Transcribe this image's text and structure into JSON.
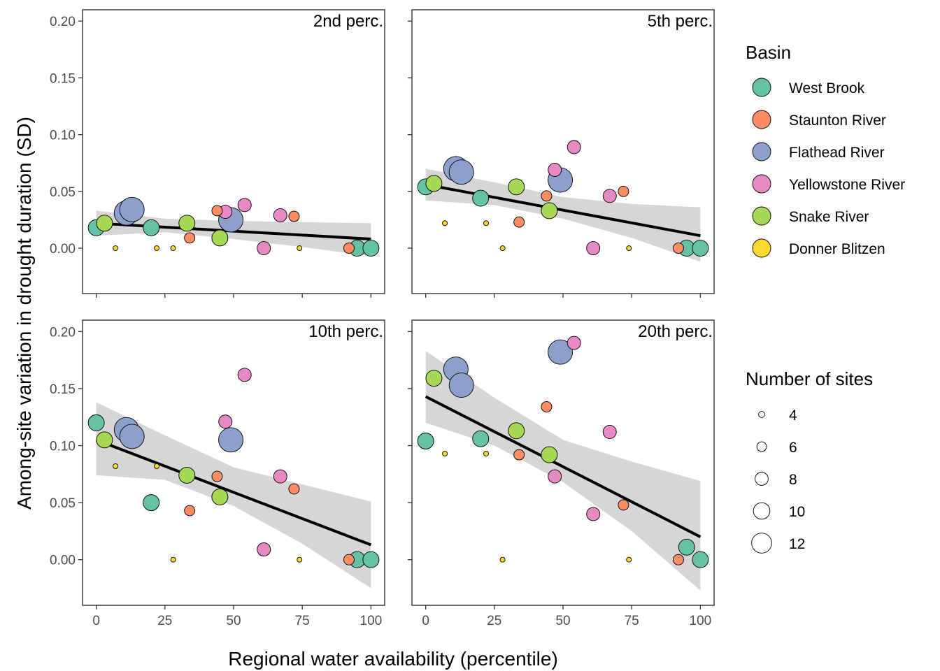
{
  "chart_data": {
    "type": "scatter",
    "xlabel": "Regional water availability (percentile)",
    "ylabel": "Among-site variation in drought duration (SD)",
    "xlim": [
      -5,
      105
    ],
    "ylim": [
      -0.04,
      0.21
    ],
    "x_ticks": [
      "0",
      "25",
      "50",
      "75",
      "100"
    ],
    "y_ticks": [
      "0.00",
      "0.05",
      "0.10",
      "0.15",
      "0.20"
    ],
    "grid": false,
    "basin_legend": {
      "title": "Basin",
      "items": [
        {
          "name": "West Brook",
          "color": "#66C2A5"
        },
        {
          "name": "Staunton River",
          "color": "#FC8D62"
        },
        {
          "name": "Flathead River",
          "color": "#8DA0CB"
        },
        {
          "name": "Yellowstone River",
          "color": "#E78AC3"
        },
        {
          "name": "Snake River",
          "color": "#A6D854"
        },
        {
          "name": "Donner Blitzen",
          "color": "#FFD92F"
        }
      ]
    },
    "size_legend": {
      "title": "Number of sites",
      "items": [
        {
          "label": "4",
          "n": 4
        },
        {
          "label": "6",
          "n": 6
        },
        {
          "label": "8",
          "n": 8
        },
        {
          "label": "10",
          "n": 10
        },
        {
          "label": "12",
          "n": 12
        }
      ]
    },
    "panels": [
      {
        "label": "2nd perc.",
        "fit": {
          "x0": 0,
          "y0": 0.022,
          "x1": 100,
          "y1": 0.008
        },
        "band": [
          [
            0,
            0.011,
            0.033
          ],
          [
            25,
            0.014,
            0.026
          ],
          [
            50,
            0.008,
            0.024
          ],
          [
            75,
            0.001,
            0.023
          ],
          [
            100,
            -0.007,
            0.022
          ]
        ],
        "points": [
          {
            "x": 0,
            "y": 0.018,
            "basin": 0,
            "n": 7
          },
          {
            "x": 3,
            "y": 0.022,
            "basin": 4,
            "n": 7
          },
          {
            "x": 7,
            "y": 0.0,
            "basin": 5,
            "n": 3
          },
          {
            "x": 11,
            "y": 0.031,
            "basin": 2,
            "n": 10
          },
          {
            "x": 13,
            "y": 0.034,
            "basin": 2,
            "n": 10
          },
          {
            "x": 20,
            "y": 0.018,
            "basin": 0,
            "n": 7
          },
          {
            "x": 22,
            "y": 0.0,
            "basin": 5,
            "n": 3
          },
          {
            "x": 28,
            "y": 0.0,
            "basin": 5,
            "n": 3
          },
          {
            "x": 33,
            "y": 0.022,
            "basin": 4,
            "n": 7
          },
          {
            "x": 34,
            "y": 0.009,
            "basin": 1,
            "n": 5
          },
          {
            "x": 44,
            "y": 0.033,
            "basin": 1,
            "n": 5
          },
          {
            "x": 45,
            "y": 0.009,
            "basin": 4,
            "n": 7
          },
          {
            "x": 47,
            "y": 0.032,
            "basin": 3,
            "n": 6
          },
          {
            "x": 49,
            "y": 0.025,
            "basin": 2,
            "n": 10
          },
          {
            "x": 54,
            "y": 0.038,
            "basin": 3,
            "n": 6
          },
          {
            "x": 61,
            "y": 0.0,
            "basin": 3,
            "n": 6
          },
          {
            "x": 67,
            "y": 0.029,
            "basin": 3,
            "n": 6
          },
          {
            "x": 72,
            "y": 0.028,
            "basin": 1,
            "n": 5
          },
          {
            "x": 74,
            "y": 0.0,
            "basin": 5,
            "n": 3
          },
          {
            "x": 92,
            "y": 0.0,
            "basin": 1,
            "n": 5
          },
          {
            "x": 95,
            "y": 0.0,
            "basin": 0,
            "n": 7
          },
          {
            "x": 100,
            "y": 0.0,
            "basin": 0,
            "n": 7
          }
        ]
      },
      {
        "label": "5th perc.",
        "fit": {
          "x0": 0,
          "y0": 0.056,
          "x1": 100,
          "y1": 0.011
        },
        "band": [
          [
            0,
            0.042,
            0.07
          ],
          [
            25,
            0.038,
            0.058
          ],
          [
            50,
            0.026,
            0.045
          ],
          [
            75,
            0.009,
            0.039
          ],
          [
            100,
            -0.012,
            0.036
          ]
        ],
        "points": [
          {
            "x": 0,
            "y": 0.054,
            "basin": 0,
            "n": 7
          },
          {
            "x": 3,
            "y": 0.057,
            "basin": 4,
            "n": 7
          },
          {
            "x": 7,
            "y": 0.022,
            "basin": 5,
            "n": 3
          },
          {
            "x": 11,
            "y": 0.07,
            "basin": 2,
            "n": 10
          },
          {
            "x": 13,
            "y": 0.067,
            "basin": 2,
            "n": 10
          },
          {
            "x": 20,
            "y": 0.044,
            "basin": 0,
            "n": 7
          },
          {
            "x": 22,
            "y": 0.022,
            "basin": 5,
            "n": 3
          },
          {
            "x": 28,
            "y": 0.0,
            "basin": 5,
            "n": 3
          },
          {
            "x": 33,
            "y": 0.054,
            "basin": 4,
            "n": 7
          },
          {
            "x": 34,
            "y": 0.023,
            "basin": 1,
            "n": 5
          },
          {
            "x": 44,
            "y": 0.046,
            "basin": 1,
            "n": 5
          },
          {
            "x": 45,
            "y": 0.033,
            "basin": 4,
            "n": 7
          },
          {
            "x": 47,
            "y": 0.069,
            "basin": 3,
            "n": 6
          },
          {
            "x": 49,
            "y": 0.06,
            "basin": 2,
            "n": 10
          },
          {
            "x": 54,
            "y": 0.089,
            "basin": 3,
            "n": 6
          },
          {
            "x": 61,
            "y": 0.0,
            "basin": 3,
            "n": 6
          },
          {
            "x": 67,
            "y": 0.046,
            "basin": 3,
            "n": 6
          },
          {
            "x": 72,
            "y": 0.05,
            "basin": 1,
            "n": 5
          },
          {
            "x": 74,
            "y": 0.0,
            "basin": 5,
            "n": 3
          },
          {
            "x": 92,
            "y": 0.0,
            "basin": 1,
            "n": 5
          },
          {
            "x": 95,
            "y": 0.0,
            "basin": 0,
            "n": 7
          },
          {
            "x": 100,
            "y": 0.0,
            "basin": 0,
            "n": 7
          }
        ]
      },
      {
        "label": "10th perc.",
        "fit": {
          "x0": 0,
          "y0": 0.105,
          "x1": 100,
          "y1": 0.013
        },
        "band": [
          [
            0,
            0.074,
            0.138
          ],
          [
            25,
            0.07,
            0.109
          ],
          [
            50,
            0.047,
            0.081
          ],
          [
            75,
            0.014,
            0.066
          ],
          [
            100,
            -0.025,
            0.051
          ]
        ],
        "points": [
          {
            "x": 0,
            "y": 0.12,
            "basin": 0,
            "n": 7
          },
          {
            "x": 3,
            "y": 0.105,
            "basin": 4,
            "n": 7
          },
          {
            "x": 7,
            "y": 0.082,
            "basin": 5,
            "n": 3
          },
          {
            "x": 11,
            "y": 0.114,
            "basin": 2,
            "n": 10
          },
          {
            "x": 13,
            "y": 0.108,
            "basin": 2,
            "n": 10
          },
          {
            "x": 20,
            "y": 0.05,
            "basin": 0,
            "n": 7
          },
          {
            "x": 22,
            "y": 0.082,
            "basin": 5,
            "n": 3
          },
          {
            "x": 28,
            "y": 0.0,
            "basin": 5,
            "n": 3
          },
          {
            "x": 33,
            "y": 0.074,
            "basin": 4,
            "n": 7
          },
          {
            "x": 34,
            "y": 0.043,
            "basin": 1,
            "n": 5
          },
          {
            "x": 44,
            "y": 0.073,
            "basin": 1,
            "n": 5
          },
          {
            "x": 45,
            "y": 0.055,
            "basin": 4,
            "n": 7
          },
          {
            "x": 47,
            "y": 0.121,
            "basin": 3,
            "n": 6
          },
          {
            "x": 49,
            "y": 0.105,
            "basin": 2,
            "n": 10
          },
          {
            "x": 54,
            "y": 0.162,
            "basin": 3,
            "n": 6
          },
          {
            "x": 61,
            "y": 0.009,
            "basin": 3,
            "n": 6
          },
          {
            "x": 67,
            "y": 0.073,
            "basin": 3,
            "n": 6
          },
          {
            "x": 72,
            "y": 0.062,
            "basin": 1,
            "n": 5
          },
          {
            "x": 74,
            "y": 0.0,
            "basin": 5,
            "n": 3
          },
          {
            "x": 92,
            "y": 0.0,
            "basin": 1,
            "n": 5
          },
          {
            "x": 95,
            "y": 0.0,
            "basin": 0,
            "n": 7
          },
          {
            "x": 100,
            "y": 0.0,
            "basin": 0,
            "n": 7
          }
        ]
      },
      {
        "label": "20th perc.",
        "fit": {
          "x0": 0,
          "y0": 0.143,
          "x1": 100,
          "y1": 0.02
        },
        "band": [
          [
            0,
            0.12,
            0.183
          ],
          [
            25,
            0.1,
            0.142
          ],
          [
            50,
            0.068,
            0.105
          ],
          [
            75,
            0.025,
            0.086
          ],
          [
            100,
            -0.027,
            0.069
          ]
        ],
        "points": [
          {
            "x": 0,
            "y": 0.104,
            "basin": 0,
            "n": 7
          },
          {
            "x": 3,
            "y": 0.159,
            "basin": 4,
            "n": 7
          },
          {
            "x": 7,
            "y": 0.093,
            "basin": 5,
            "n": 3
          },
          {
            "x": 11,
            "y": 0.167,
            "basin": 2,
            "n": 10
          },
          {
            "x": 13,
            "y": 0.153,
            "basin": 2,
            "n": 10
          },
          {
            "x": 20,
            "y": 0.106,
            "basin": 0,
            "n": 7
          },
          {
            "x": 22,
            "y": 0.093,
            "basin": 5,
            "n": 3
          },
          {
            "x": 28,
            "y": 0.0,
            "basin": 5,
            "n": 3
          },
          {
            "x": 33,
            "y": 0.113,
            "basin": 4,
            "n": 7
          },
          {
            "x": 34,
            "y": 0.092,
            "basin": 1,
            "n": 5
          },
          {
            "x": 44,
            "y": 0.134,
            "basin": 1,
            "n": 5
          },
          {
            "x": 45,
            "y": 0.092,
            "basin": 4,
            "n": 7
          },
          {
            "x": 47,
            "y": 0.073,
            "basin": 3,
            "n": 6
          },
          {
            "x": 49,
            "y": 0.182,
            "basin": 2,
            "n": 10
          },
          {
            "x": 54,
            "y": 0.19,
            "basin": 3,
            "n": 6
          },
          {
            "x": 61,
            "y": 0.04,
            "basin": 3,
            "n": 6
          },
          {
            "x": 67,
            "y": 0.112,
            "basin": 3,
            "n": 6
          },
          {
            "x": 72,
            "y": 0.048,
            "basin": 1,
            "n": 5
          },
          {
            "x": 74,
            "y": 0.0,
            "basin": 5,
            "n": 3
          },
          {
            "x": 92,
            "y": 0.0,
            "basin": 1,
            "n": 5
          },
          {
            "x": 95,
            "y": 0.011,
            "basin": 0,
            "n": 7
          },
          {
            "x": 100,
            "y": 0.0,
            "basin": 0,
            "n": 7
          }
        ]
      }
    ]
  }
}
